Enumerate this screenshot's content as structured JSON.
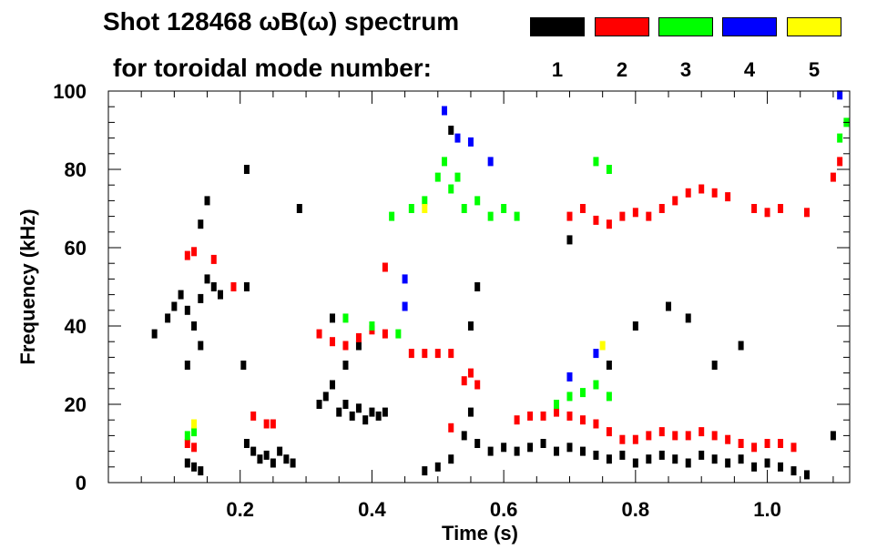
{
  "chart_data": {
    "type": "scatter",
    "title_line1": "Shot 128468 ωB(ω) spectrum",
    "title_line2": "for toroidal mode number:",
    "xlabel": "Time (s)",
    "ylabel": "Frequency (kHz)",
    "xlim": [
      0.0,
      1.125
    ],
    "ylim": [
      0,
      100
    ],
    "x_ticks": [
      "0.2",
      "0.4",
      "0.6",
      "0.8",
      "1.0"
    ],
    "x_tick_values": [
      0.2,
      0.4,
      0.6,
      0.8,
      1.0
    ],
    "y_ticks": [
      "0",
      "20",
      "40",
      "60",
      "80",
      "100"
    ],
    "y_tick_values": [
      0,
      20,
      40,
      60,
      80,
      100
    ],
    "legend": [
      {
        "mode": "1",
        "color": "#000000"
      },
      {
        "mode": "2",
        "color": "#ff0000"
      },
      {
        "mode": "3",
        "color": "#00ff00"
      },
      {
        "mode": "4",
        "color": "#0000ff"
      },
      {
        "mode": "5",
        "color": "#ffff00"
      }
    ],
    "series": [
      {
        "name": "n=1",
        "mode": "1",
        "color": "#000000",
        "points": [
          [
            0.07,
            38
          ],
          [
            0.09,
            42
          ],
          [
            0.1,
            45
          ],
          [
            0.11,
            48
          ],
          [
            0.12,
            44
          ],
          [
            0.13,
            40
          ],
          [
            0.14,
            47
          ],
          [
            0.15,
            52
          ],
          [
            0.16,
            50
          ],
          [
            0.17,
            48
          ],
          [
            0.12,
            30
          ],
          [
            0.14,
            35
          ],
          [
            0.15,
            72
          ],
          [
            0.14,
            66
          ],
          [
            0.12,
            5
          ],
          [
            0.13,
            4
          ],
          [
            0.14,
            3
          ],
          [
            0.205,
            30
          ],
          [
            0.21,
            10
          ],
          [
            0.22,
            8
          ],
          [
            0.23,
            6
          ],
          [
            0.24,
            7
          ],
          [
            0.25,
            5
          ],
          [
            0.26,
            8
          ],
          [
            0.27,
            6
          ],
          [
            0.28,
            5
          ],
          [
            0.21,
            50
          ],
          [
            0.21,
            80
          ],
          [
            0.29,
            70
          ],
          [
            0.32,
            20
          ],
          [
            0.33,
            22
          ],
          [
            0.34,
            25
          ],
          [
            0.35,
            18
          ],
          [
            0.36,
            20
          ],
          [
            0.37,
            17
          ],
          [
            0.38,
            19
          ],
          [
            0.39,
            16
          ],
          [
            0.4,
            18
          ],
          [
            0.41,
            17
          ],
          [
            0.42,
            18
          ],
          [
            0.34,
            42
          ],
          [
            0.36,
            30
          ],
          [
            0.38,
            35
          ],
          [
            0.48,
            3
          ],
          [
            0.5,
            4
          ],
          [
            0.52,
            6
          ],
          [
            0.54,
            12
          ],
          [
            0.55,
            18
          ],
          [
            0.56,
            10
          ],
          [
            0.58,
            8
          ],
          [
            0.6,
            9
          ],
          [
            0.62,
            8
          ],
          [
            0.64,
            9
          ],
          [
            0.66,
            10
          ],
          [
            0.68,
            8
          ],
          [
            0.7,
            9
          ],
          [
            0.72,
            8
          ],
          [
            0.74,
            7
          ],
          [
            0.76,
            6
          ],
          [
            0.78,
            7
          ],
          [
            0.8,
            5
          ],
          [
            0.82,
            6
          ],
          [
            0.84,
            7
          ],
          [
            0.86,
            6
          ],
          [
            0.88,
            5
          ],
          [
            0.9,
            7
          ],
          [
            0.92,
            6
          ],
          [
            0.94,
            5
          ],
          [
            0.96,
            6
          ],
          [
            0.98,
            4
          ],
          [
            1.0,
            5
          ],
          [
            1.02,
            4
          ],
          [
            1.04,
            3
          ],
          [
            1.06,
            2
          ],
          [
            0.55,
            40
          ],
          [
            0.56,
            50
          ],
          [
            0.52,
            90
          ],
          [
            0.7,
            62
          ],
          [
            0.76,
            30
          ],
          [
            0.8,
            40
          ],
          [
            0.85,
            45
          ],
          [
            0.88,
            42
          ],
          [
            0.92,
            30
          ],
          [
            0.96,
            35
          ],
          [
            1.1,
            12
          ]
        ]
      },
      {
        "name": "n=2",
        "mode": "2",
        "color": "#ff0000",
        "points": [
          [
            0.12,
            58
          ],
          [
            0.13,
            59
          ],
          [
            0.16,
            57
          ],
          [
            0.19,
            50
          ],
          [
            0.12,
            10
          ],
          [
            0.13,
            9
          ],
          [
            0.22,
            17
          ],
          [
            0.24,
            15
          ],
          [
            0.25,
            15
          ],
          [
            0.32,
            38
          ],
          [
            0.34,
            36
          ],
          [
            0.36,
            35
          ],
          [
            0.38,
            37
          ],
          [
            0.4,
            39
          ],
          [
            0.42,
            38
          ],
          [
            0.42,
            55
          ],
          [
            0.46,
            33
          ],
          [
            0.48,
            33
          ],
          [
            0.5,
            33
          ],
          [
            0.52,
            33
          ],
          [
            0.52,
            14
          ],
          [
            0.54,
            26
          ],
          [
            0.55,
            28
          ],
          [
            0.56,
            25
          ],
          [
            0.62,
            16
          ],
          [
            0.64,
            17
          ],
          [
            0.66,
            17
          ],
          [
            0.68,
            18
          ],
          [
            0.7,
            17
          ],
          [
            0.72,
            16
          ],
          [
            0.74,
            15
          ],
          [
            0.76,
            13
          ],
          [
            0.78,
            11
          ],
          [
            0.8,
            11
          ],
          [
            0.82,
            12
          ],
          [
            0.84,
            13
          ],
          [
            0.86,
            12
          ],
          [
            0.88,
            12
          ],
          [
            0.9,
            13
          ],
          [
            0.92,
            12
          ],
          [
            0.94,
            11
          ],
          [
            0.96,
            10
          ],
          [
            0.98,
            9
          ],
          [
            1.0,
            10
          ],
          [
            1.02,
            10
          ],
          [
            1.04,
            9
          ],
          [
            0.7,
            68
          ],
          [
            0.72,
            70
          ],
          [
            0.74,
            67
          ],
          [
            0.76,
            66
          ],
          [
            0.78,
            68
          ],
          [
            0.8,
            69
          ],
          [
            0.82,
            68
          ],
          [
            0.84,
            70
          ],
          [
            0.86,
            72
          ],
          [
            0.88,
            74
          ],
          [
            0.9,
            75
          ],
          [
            0.92,
            74
          ],
          [
            0.94,
            73
          ],
          [
            0.98,
            70
          ],
          [
            1.0,
            69
          ],
          [
            1.02,
            70
          ],
          [
            1.06,
            69
          ],
          [
            1.1,
            78
          ],
          [
            1.11,
            82
          ]
        ]
      },
      {
        "name": "n=3",
        "mode": "3",
        "color": "#00ff00",
        "points": [
          [
            0.12,
            12
          ],
          [
            0.13,
            13
          ],
          [
            0.43,
            68
          ],
          [
            0.46,
            70
          ],
          [
            0.48,
            72
          ],
          [
            0.5,
            78
          ],
          [
            0.51,
            82
          ],
          [
            0.52,
            75
          ],
          [
            0.53,
            78
          ],
          [
            0.54,
            70
          ],
          [
            0.56,
            72
          ],
          [
            0.58,
            68
          ],
          [
            0.6,
            70
          ],
          [
            0.62,
            68
          ],
          [
            0.36,
            42
          ],
          [
            0.4,
            40
          ],
          [
            0.44,
            38
          ],
          [
            0.68,
            20
          ],
          [
            0.7,
            22
          ],
          [
            0.72,
            23
          ],
          [
            0.74,
            25
          ],
          [
            0.76,
            22
          ],
          [
            0.74,
            82
          ],
          [
            0.76,
            80
          ],
          [
            1.11,
            88
          ],
          [
            1.12,
            92
          ]
        ]
      },
      {
        "name": "n=4",
        "mode": "4",
        "color": "#0000ff",
        "points": [
          [
            0.51,
            95
          ],
          [
            0.53,
            88
          ],
          [
            0.55,
            87
          ],
          [
            0.58,
            82
          ],
          [
            0.45,
            45
          ],
          [
            0.45,
            52
          ],
          [
            0.7,
            27
          ],
          [
            0.74,
            33
          ],
          [
            1.11,
            99
          ]
        ]
      },
      {
        "name": "n=5",
        "mode": "5",
        "color": "#ffff00",
        "points": [
          [
            0.13,
            15
          ],
          [
            0.48,
            70
          ],
          [
            0.75,
            35
          ]
        ]
      }
    ]
  }
}
